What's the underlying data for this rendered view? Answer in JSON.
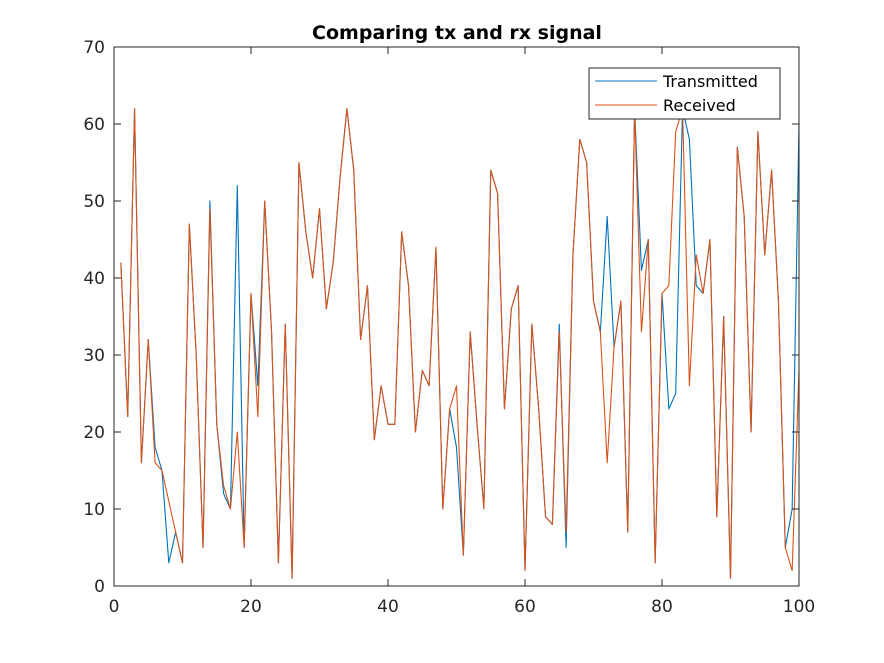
{
  "chart_data": {
    "type": "line",
    "title": "Comparing tx and rx signal",
    "xlabel": "",
    "ylabel": "",
    "xlim": [
      0,
      100
    ],
    "ylim": [
      0,
      70
    ],
    "xticks": [
      0,
      20,
      40,
      60,
      80,
      100
    ],
    "yticks": [
      0,
      10,
      20,
      30,
      40,
      50,
      60,
      70
    ],
    "xtick_labels": [
      "0",
      "20",
      "40",
      "60",
      "80",
      "100"
    ],
    "ytick_labels": [
      "0",
      "10",
      "20",
      "30",
      "40",
      "50",
      "60",
      "70"
    ],
    "grid": false,
    "legend_position": "top-right",
    "x": [
      1,
      2,
      3,
      4,
      5,
      6,
      7,
      8,
      9,
      10,
      11,
      12,
      13,
      14,
      15,
      16,
      17,
      18,
      19,
      20,
      21,
      22,
      23,
      24,
      25,
      26,
      27,
      28,
      29,
      30,
      31,
      32,
      33,
      34,
      35,
      36,
      37,
      38,
      39,
      40,
      41,
      42,
      43,
      44,
      45,
      46,
      47,
      48,
      49,
      50,
      51,
      52,
      53,
      54,
      55,
      56,
      57,
      58,
      59,
      60,
      61,
      62,
      63,
      64,
      65,
      66,
      67,
      68,
      69,
      70,
      71,
      72,
      73,
      74,
      75,
      76,
      77,
      78,
      79,
      80,
      81,
      82,
      83,
      84,
      85,
      86,
      87,
      88,
      89,
      90,
      91,
      92,
      93,
      94,
      95,
      96,
      97,
      98,
      99,
      100
    ],
    "series": [
      {
        "name": "Transmitted",
        "color": "#0072BD",
        "values": [
          42,
          22,
          62,
          16,
          32,
          18,
          15,
          3,
          7,
          3,
          47,
          30,
          5,
          50,
          21,
          12,
          10,
          52,
          5,
          38,
          26,
          50,
          33,
          3,
          34,
          1,
          55,
          46,
          40,
          49,
          36,
          42,
          53,
          62,
          54,
          32,
          39,
          19,
          26,
          21,
          21,
          46,
          39,
          20,
          28,
          26,
          44,
          10,
          23,
          18,
          4,
          33,
          21,
          10,
          54,
          51,
          23,
          36,
          39,
          2,
          34,
          23,
          9,
          8,
          34,
          5,
          43,
          58,
          55,
          37,
          33,
          48,
          31,
          37,
          7,
          62,
          41,
          45,
          3,
          38,
          23,
          25,
          62,
          58,
          39,
          38,
          45,
          9,
          35,
          1,
          57,
          48,
          20,
          59,
          43,
          54,
          37,
          5,
          10,
          60
        ]
      },
      {
        "name": "Received",
        "color": "#D95319",
        "values": [
          42,
          22,
          62,
          16,
          32,
          16,
          15,
          11,
          7,
          3,
          47,
          30,
          5,
          49,
          21,
          13,
          10,
          20,
          5,
          38,
          22,
          50,
          33,
          3,
          34,
          1,
          55,
          46,
          40,
          49,
          36,
          42,
          53,
          62,
          54,
          32,
          39,
          19,
          26,
          21,
          21,
          46,
          39,
          20,
          28,
          26,
          44,
          10,
          23,
          26,
          4,
          33,
          21,
          10,
          54,
          51,
          23,
          36,
          39,
          2,
          34,
          23,
          9,
          8,
          33,
          7,
          43,
          58,
          55,
          37,
          33,
          16,
          31,
          37,
          7,
          62,
          33,
          45,
          3,
          38,
          39,
          59,
          62,
          26,
          43,
          38,
          45,
          9,
          35,
          1,
          57,
          48,
          20,
          59,
          43,
          54,
          37,
          5,
          2,
          28
        ]
      }
    ]
  }
}
